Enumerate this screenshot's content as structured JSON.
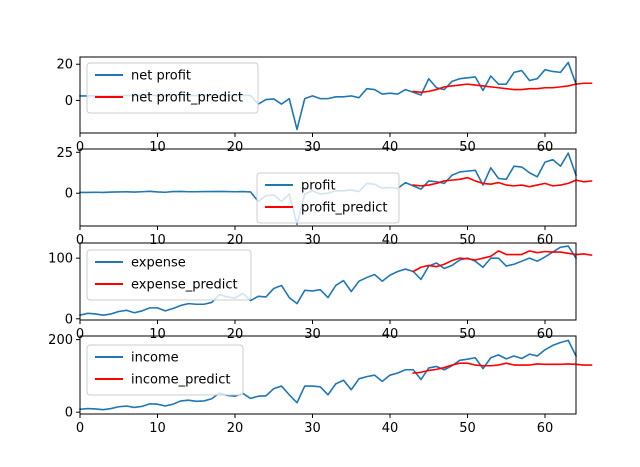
{
  "colors": {
    "actual": "#1f77b4",
    "predict": "#ff0000"
  },
  "chart_data": [
    {
      "type": "line",
      "x_range": [
        0,
        64
      ],
      "x_ticks": [
        0,
        10,
        20,
        30,
        40,
        50,
        60
      ],
      "ylim": [
        -18,
        24
      ],
      "y_ticks": [
        0,
        20
      ],
      "legend": "upper-left",
      "series": [
        {
          "name": "net profit",
          "color": "actual",
          "x_start": 0,
          "values": [
            2.5,
            2.5,
            2.6,
            2.4,
            2.6,
            2.7,
            2.8,
            2.6,
            2.8,
            3.0,
            2.7,
            2.6,
            2.9,
            2.8,
            2.7,
            2.7,
            2.8,
            2.8,
            2.7,
            2.8,
            2.7,
            2.8,
            2.7,
            -2.0,
            0.5,
            0.8,
            -2.0,
            1.0,
            -16.0,
            1.0,
            2.5,
            1.0,
            1.0,
            2.0,
            2.0,
            2.5,
            1.5,
            6.5,
            6.0,
            3.5,
            4.0,
            3.5,
            6.0,
            4.5,
            3.0,
            12.0,
            7.0,
            6.0,
            10.5,
            12.0,
            12.5,
            13.0,
            5.5,
            13.5,
            9.0,
            9.0,
            15.5,
            16.5,
            11.0,
            12.0,
            17.0,
            16.0,
            15.5,
            21.0,
            9.0
          ]
        },
        {
          "name": "net profit_predict",
          "color": "predict",
          "x_start": 43,
          "values": [
            5.0,
            4.5,
            5.0,
            6.0,
            7.5,
            8.0,
            8.5,
            9.0,
            8.5,
            8.0,
            7.5,
            7.0,
            6.5,
            6.0,
            6.0,
            6.5,
            6.5,
            7.0,
            7.0,
            7.5,
            8.0,
            9.0,
            9.5,
            9.5
          ]
        }
      ]
    },
    {
      "type": "line",
      "x_range": [
        0,
        64
      ],
      "x_ticks": [
        0,
        10,
        20,
        30,
        40,
        50,
        60
      ],
      "ylim": [
        -20,
        27
      ],
      "y_ticks": [
        0,
        25
      ],
      "legend": "center",
      "series": [
        {
          "name": "profit",
          "color": "actual",
          "x_start": 0,
          "values": [
            0.5,
            0.5,
            0.6,
            0.5,
            0.7,
            0.8,
            0.9,
            0.7,
            0.9,
            1.2,
            0.8,
            0.6,
            1.0,
            1.1,
            0.9,
            0.9,
            1.0,
            1.0,
            1.1,
            1.0,
            0.9,
            1.0,
            0.8,
            -5.0,
            -1.5,
            -1.0,
            -5.0,
            -0.5,
            -19.0,
            -0.5,
            1.5,
            -0.5,
            0.0,
            1.5,
            1.5,
            2.0,
            1.0,
            6.0,
            5.5,
            3.0,
            3.5,
            3.0,
            6.5,
            4.5,
            2.5,
            7.5,
            7.0,
            6.0,
            11.0,
            13.0,
            13.5,
            14.0,
            5.0,
            15.5,
            9.0,
            8.5,
            16.5,
            16.0,
            12.5,
            10.0,
            19.0,
            20.5,
            16.5,
            24.5,
            11.0
          ]
        },
        {
          "name": "profit_predict",
          "color": "predict",
          "x_start": 43,
          "values": [
            5.0,
            4.5,
            5.0,
            6.0,
            7.5,
            8.0,
            8.5,
            9.5,
            7.5,
            6.0,
            5.5,
            6.5,
            5.0,
            4.5,
            5.0,
            4.0,
            5.0,
            6.0,
            4.5,
            5.0,
            6.0,
            8.0,
            7.0,
            7.5
          ]
        }
      ]
    },
    {
      "type": "line",
      "x_range": [
        0,
        64
      ],
      "x_ticks": [
        0,
        10,
        20,
        30,
        40,
        50,
        60
      ],
      "ylim": [
        -2,
        125
      ],
      "y_ticks": [
        0,
        100
      ],
      "legend": "upper-left",
      "series": [
        {
          "name": "expense",
          "color": "actual",
          "x_start": 0,
          "values": [
            6,
            9,
            8,
            6,
            8,
            12,
            14,
            10,
            13,
            18,
            18,
            13,
            17,
            22,
            25,
            24,
            24,
            27,
            40,
            36,
            34,
            42,
            30,
            37,
            36,
            50,
            55,
            35,
            25,
            47,
            46,
            48,
            35,
            55,
            63,
            45,
            62,
            68,
            73,
            62,
            72,
            78,
            82,
            78,
            65,
            87,
            92,
            83,
            88,
            97,
            100,
            95,
            85,
            100,
            100,
            87,
            90,
            95,
            100,
            95,
            102,
            110,
            118,
            120,
            100
          ]
        },
        {
          "name": "expense_predict",
          "color": "predict",
          "x_start": 43,
          "values": [
            78,
            85,
            88,
            86,
            90,
            96,
            100,
            99,
            97,
            100,
            103,
            112,
            106,
            106,
            106,
            112,
            109,
            111,
            110,
            110,
            108,
            106,
            107,
            105
          ]
        }
      ]
    },
    {
      "type": "line",
      "x_range": [
        0,
        64
      ],
      "x_ticks": [
        0,
        10,
        20,
        30,
        40,
        50,
        60
      ],
      "ylim": [
        -5,
        210
      ],
      "y_ticks": [
        0,
        200
      ],
      "legend": "upper-left",
      "series": [
        {
          "name": "income",
          "color": "actual",
          "x_start": 0,
          "values": [
            8,
            10,
            9,
            7,
            10,
            15,
            17,
            13,
            16,
            23,
            22,
            17,
            22,
            31,
            33,
            30,
            31,
            37,
            53,
            46,
            44,
            52,
            38,
            44,
            45,
            65,
            72,
            48,
            26,
            72,
            72,
            70,
            48,
            78,
            88,
            62,
            92,
            98,
            102,
            85,
            102,
            108,
            117,
            117,
            90,
            122,
            126,
            117,
            128,
            143,
            146,
            150,
            120,
            150,
            158,
            147,
            155,
            148,
            160,
            155,
            172,
            184,
            192,
            198,
            155
          ]
        },
        {
          "name": "income_predict",
          "color": "predict",
          "x_start": 43,
          "values": [
            108,
            110,
            115,
            118,
            123,
            130,
            135,
            135,
            130,
            128,
            128,
            130,
            135,
            130,
            130,
            130,
            133,
            132,
            132,
            132,
            133,
            132,
            130,
            130
          ]
        }
      ]
    }
  ]
}
